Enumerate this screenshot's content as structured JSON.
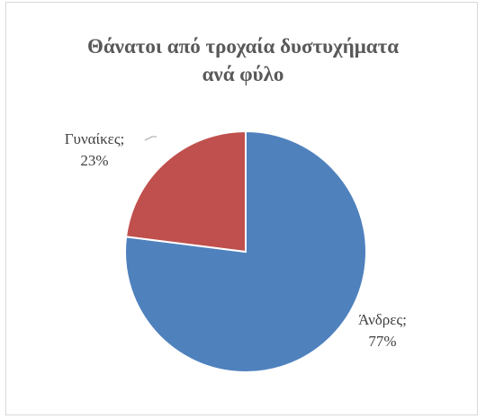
{
  "chart_data": {
    "type": "pie",
    "title_lines": [
      "Θάνατοι από τροχαία δυστυχήματα",
      "ανά φύλο"
    ],
    "slices": [
      {
        "label": "Άνδρες",
        "value": 77,
        "value_text": "77%",
        "color": "#4f81bd"
      },
      {
        "label": "Γυναίκες",
        "value": 23,
        "value_text": "23%",
        "color": "#c0504d"
      }
    ],
    "data_label_separator": ";",
    "legend": "none"
  }
}
